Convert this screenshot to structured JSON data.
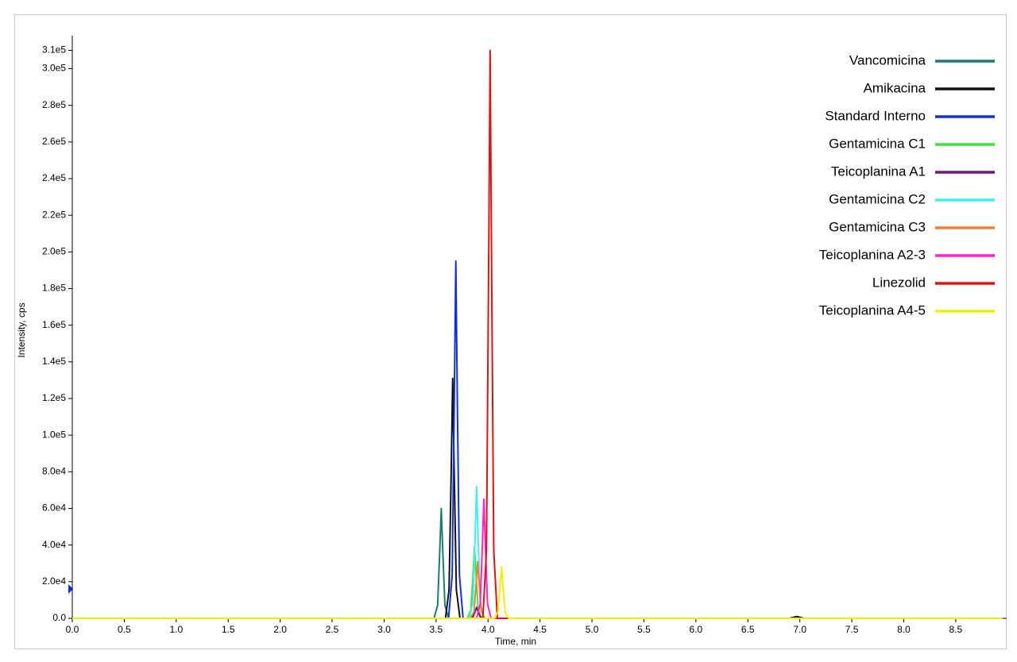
{
  "chart_data": {
    "type": "line",
    "x_label": "Time, min",
    "y_label": "Intensity, cps",
    "xlim": [
      0,
      8.99
    ],
    "ylim": [
      0,
      318000
    ],
    "xticks": [
      {
        "value": 0,
        "label": "0.0"
      },
      {
        "value": 0.5,
        "label": "0.5"
      },
      {
        "value": 1,
        "label": "1.0"
      },
      {
        "value": 1.5,
        "label": "1.5"
      },
      {
        "value": 2,
        "label": "2.0"
      },
      {
        "value": 2.5,
        "label": "2.5"
      },
      {
        "value": 3,
        "label": "3.0"
      },
      {
        "value": 3.5,
        "label": "3.5"
      },
      {
        "value": 4,
        "label": "4.0"
      },
      {
        "value": 4.5,
        "label": "4.5"
      },
      {
        "value": 5,
        "label": "5.0"
      },
      {
        "value": 5.5,
        "label": "5.5"
      },
      {
        "value": 6,
        "label": "6.0"
      },
      {
        "value": 6.5,
        "label": "6.5"
      },
      {
        "value": 7,
        "label": "7.0"
      },
      {
        "value": 7.5,
        "label": "7.5"
      },
      {
        "value": 8,
        "label": "8.0"
      },
      {
        "value": 8.5,
        "label": "8.5"
      }
    ],
    "yticks": [
      {
        "value": 0,
        "label": "0.0"
      },
      {
        "value": 20000,
        "label": "2.0e4"
      },
      {
        "value": 40000,
        "label": "4.0e4"
      },
      {
        "value": 60000,
        "label": "6.0e4"
      },
      {
        "value": 80000,
        "label": "8.0e4"
      },
      {
        "value": 100000,
        "label": "1.0e5"
      },
      {
        "value": 120000,
        "label": "1.2e5"
      },
      {
        "value": 140000,
        "label": "1.4e5"
      },
      {
        "value": 160000,
        "label": "1.6e5"
      },
      {
        "value": 180000,
        "label": "1.8e5"
      },
      {
        "value": 200000,
        "label": "2.0e5"
      },
      {
        "value": 220000,
        "label": "2.2e5"
      },
      {
        "value": 240000,
        "label": "2.4e5"
      },
      {
        "value": 260000,
        "label": "2.6e5"
      },
      {
        "value": 280000,
        "label": "2.8e5"
      },
      {
        "value": 300000,
        "label": "3.0e5"
      },
      {
        "value": 310000,
        "label": "3.1e5"
      }
    ],
    "grid": false,
    "legend": "upper right",
    "series": [
      {
        "name": "Vancomicina",
        "color": "#1b7b78",
        "x": [
          0,
          3.48,
          3.515,
          3.535,
          3.55,
          3.565,
          3.585,
          3.62,
          8.95
        ],
        "values": [
          0,
          0,
          7200,
          36000,
          60000,
          36000,
          7200,
          0,
          0
        ]
      },
      {
        "name": "Amikacina",
        "color": "#111111",
        "x": [
          0,
          3.59,
          3.625,
          3.645,
          3.66,
          3.675,
          3.695,
          3.73,
          6.9,
          6.97,
          7.04,
          8.95
        ],
        "values": [
          0,
          0,
          15720,
          78600,
          131000,
          78600,
          15720,
          0,
          0,
          1000,
          0,
          0
        ]
      },
      {
        "name": "Standard Interno",
        "color": "#1030e0",
        "x": [
          0,
          3.62,
          3.655,
          3.675,
          3.69,
          3.705,
          3.725,
          3.76,
          8.95
        ],
        "values": [
          0,
          0,
          23400,
          117000,
          195000,
          117000,
          23400,
          0,
          0
        ]
      },
      {
        "name": "Gentamicina C1",
        "color": "#40e040",
        "x": [
          0,
          3.8,
          3.835,
          3.855,
          3.87,
          3.885,
          3.905,
          3.94,
          8.95
        ],
        "values": [
          0,
          0,
          4680,
          23400,
          39000,
          23400,
          4680,
          0,
          0
        ]
      },
      {
        "name": "Teicoplanina A1",
        "color": "#6a1a7a",
        "x": [
          0,
          3.82,
          3.855,
          3.875,
          3.89,
          3.905,
          3.925,
          3.96,
          8.95
        ],
        "values": [
          0,
          0,
          720,
          3600,
          6000,
          3600,
          720,
          0,
          0
        ]
      },
      {
        "name": "Gentamicina C2",
        "color": "#40f0f0",
        "x": [
          0,
          3.82,
          3.855,
          3.875,
          3.89,
          3.905,
          3.925,
          3.96,
          8.95
        ],
        "values": [
          0,
          0,
          8640,
          43200,
          72000,
          43200,
          8640,
          0,
          0
        ]
      },
      {
        "name": "Gentamicina C3",
        "color": "#f08030",
        "x": [
          0,
          3.83,
          3.865,
          3.885,
          3.9,
          3.915,
          3.935,
          3.97,
          8.95
        ],
        "values": [
          0,
          0,
          3720,
          18600,
          31000,
          18600,
          3720,
          0,
          0
        ]
      },
      {
        "name": "Teicoplanina A2-3",
        "color": "#ff20d0",
        "x": [
          0,
          3.89,
          3.925,
          3.945,
          3.96,
          3.975,
          3.995,
          4.03,
          8.95
        ],
        "values": [
          0,
          0,
          7800,
          39000,
          65000,
          39000,
          7800,
          0,
          0
        ]
      },
      {
        "name": "Linezolid",
        "color": "#e81010",
        "x": [
          0,
          3.95,
          3.985,
          4.005,
          4.02,
          4.035,
          4.055,
          4.09,
          8.95
        ],
        "values": [
          0,
          0,
          37200,
          186000,
          310000,
          186000,
          37200,
          0,
          0
        ]
      },
      {
        "name": "Teicoplanina A4-5",
        "color": "#f0f000",
        "x": [
          0,
          4.06,
          4.095,
          4.115,
          4.13,
          4.145,
          4.165,
          4.2,
          8.95
        ],
        "values": [
          0,
          0,
          3360,
          16800,
          28000,
          16800,
          3360,
          0,
          0
        ]
      }
    ]
  }
}
